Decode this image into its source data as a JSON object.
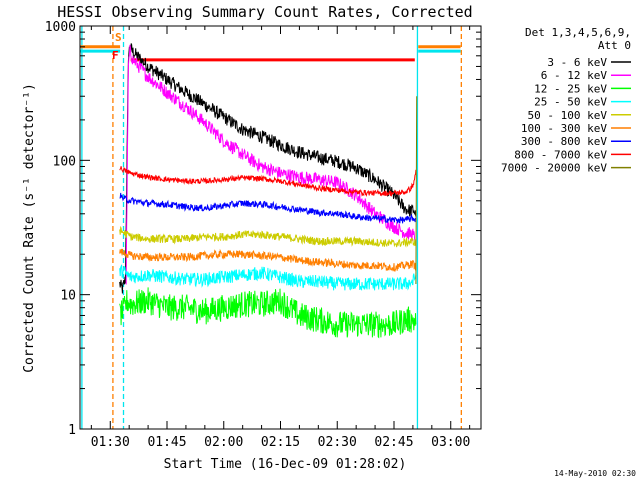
{
  "chart_data": {
    "type": "line",
    "title": "HESSI Observing Summary Count Rates, Corrected",
    "xlabel": "Start Time (16-Dec-09 01:28:02)",
    "ylabel": "Corrected Count Rate (s⁻¹ detector⁻¹)",
    "x_ticks": [
      "01:30",
      "01:45",
      "02:00",
      "02:15",
      "02:30",
      "02:45",
      "03:00"
    ],
    "x_tick_minutes": [
      90,
      105,
      120,
      135,
      150,
      165,
      180
    ],
    "xlim_minutes": [
      82,
      188
    ],
    "y_scale": "log",
    "ylim": [
      1,
      1000
    ],
    "y_ticks": [
      "1",
      "10",
      "100",
      "1000"
    ],
    "y_tick_values": [
      1,
      10,
      100,
      1000
    ],
    "footer": "14-May-2010 02:30",
    "legend": {
      "placement": "right",
      "header": [
        "Det 1,3,4,5,6,9,",
        "Att 0"
      ]
    },
    "markers": [
      {
        "label": "S",
        "color": "#ff7f00"
      },
      {
        "label": "F",
        "color": "#ff0000"
      }
    ],
    "vertical_lines": [
      {
        "x_minutes": 82.5,
        "color": "#00e5ee",
        "style": "solid"
      },
      {
        "x_minutes": 90.7,
        "color": "#ff7f00",
        "style": "dashed"
      },
      {
        "x_minutes": 93.5,
        "color": "#00e5ee",
        "style": "dashed"
      },
      {
        "x_minutes": 171.2,
        "color": "#00e5ee",
        "style": "solid"
      },
      {
        "x_minutes": 182.8,
        "color": "#ff7f00",
        "style": "dashed"
      }
    ],
    "horizontal_bars": [
      {
        "x_start": 82,
        "x_end": 92.6,
        "y": 700,
        "color": "#ff7f00"
      },
      {
        "x_start": 82,
        "x_end": 92.6,
        "y": 650,
        "color": "#00e5ee"
      },
      {
        "x_start": 171.4,
        "x_end": 182.6,
        "y": 700,
        "color": "#ff7f00"
      },
      {
        "x_start": 171.4,
        "x_end": 182.6,
        "y": 650,
        "color": "#00e5ee"
      },
      {
        "x_start": 95.4,
        "x_end": 170.5,
        "y": 560,
        "color": "#ff0000"
      }
    ],
    "series": [
      {
        "name": "3 - 6 keV",
        "color": "#000000",
        "noise": 0.05,
        "x": [
          92.5,
          93.2,
          94.0,
          94.8,
          95.2,
          96,
          100,
          105,
          110,
          115,
          120,
          125,
          130,
          135,
          140,
          145,
          150,
          155,
          160,
          165,
          167.5,
          168.5,
          169.5,
          170.3,
          170.8
        ],
        "y": [
          12,
          11,
          13,
          600,
          700,
          640,
          500,
          400,
          320,
          260,
          210,
          170,
          150,
          130,
          115,
          105,
          98,
          88,
          72,
          55,
          45,
          43,
          42,
          43,
          38
        ]
      },
      {
        "name": "6 - 12 keV",
        "color": "#ff00ff",
        "noise": 0.05,
        "x": [
          94.2,
          94.8,
          95.2,
          96,
          100,
          105,
          110,
          115,
          120,
          125,
          130,
          135,
          140,
          145,
          150,
          155,
          160,
          165,
          168,
          170,
          170.8
        ],
        "y": [
          13,
          500,
          650,
          560,
          420,
          320,
          250,
          190,
          140,
          110,
          90,
          80,
          75,
          72,
          68,
          55,
          40,
          32,
          29,
          28,
          25
        ]
      },
      {
        "name": "12 - 25 keV",
        "color": "#00ff00",
        "noise": 0.1,
        "x": [
          92.5,
          93.5,
          94.5,
          95.5,
          100,
          105,
          110,
          115,
          120,
          125,
          130,
          135,
          140,
          145,
          150,
          155,
          160,
          165,
          168,
          170,
          170.8
        ],
        "y": [
          7,
          7.5,
          9,
          8.5,
          9,
          8,
          8,
          7.5,
          8,
          8.5,
          8.5,
          9,
          7,
          6.5,
          6,
          6,
          6,
          6,
          6.5,
          6.5,
          6
        ]
      },
      {
        "name": "25 - 50 keV",
        "color": "#00ffff",
        "noise": 0.05,
        "x": [
          92.5,
          93.5,
          94.5,
          95.5,
          100,
          105,
          110,
          115,
          120,
          125,
          130,
          135,
          140,
          145,
          150,
          155,
          160,
          165,
          168,
          170,
          170.8
        ],
        "y": [
          15,
          15,
          14,
          13.5,
          14,
          13.5,
          13,
          13,
          13.5,
          14,
          14.5,
          13.5,
          12.5,
          12.5,
          12,
          12,
          12,
          12,
          12,
          12.5,
          14
        ]
      },
      {
        "name": "50 - 100 keV",
        "color": "#cccc00",
        "noise": 0.03,
        "x": [
          92.5,
          93.5,
          94.5,
          95.5,
          100,
          105,
          110,
          115,
          120,
          125,
          130,
          135,
          140,
          145,
          150,
          155,
          160,
          165,
          168,
          170,
          170.8
        ],
        "y": [
          30,
          29,
          28,
          27,
          26,
          26,
          26,
          27,
          27,
          28,
          28,
          27,
          26,
          25,
          25,
          25,
          24.5,
          24,
          24.5,
          25,
          24
        ]
      },
      {
        "name": "100 - 300 keV",
        "color": "#ff7f00",
        "noise": 0.03,
        "x": [
          92.5,
          93.5,
          94.5,
          95.5,
          100,
          105,
          110,
          115,
          120,
          125,
          130,
          135,
          140,
          145,
          150,
          155,
          160,
          165,
          168,
          170,
          170.8
        ],
        "y": [
          21,
          20.5,
          20,
          19.5,
          19,
          19,
          19,
          19.5,
          20,
          20,
          19.5,
          19,
          18,
          17.5,
          17,
          16.5,
          16.5,
          16,
          16.5,
          17,
          16
        ]
      },
      {
        "name": "300 - 800 keV",
        "color": "#0000ff",
        "noise": 0.025,
        "x": [
          92.5,
          93.5,
          94.5,
          95.5,
          100,
          105,
          110,
          115,
          120,
          125,
          130,
          135,
          140,
          145,
          150,
          155,
          160,
          165,
          168,
          170,
          170.8
        ],
        "y": [
          55,
          52,
          51,
          50,
          48,
          47,
          45,
          44,
          46,
          48,
          47,
          45,
          43,
          41,
          40,
          38,
          37,
          36,
          36,
          37,
          36
        ]
      },
      {
        "name": "800 - 7000 keV",
        "color": "#ff0000",
        "noise": 0.02,
        "x": [
          92.5,
          93.5,
          94.5,
          95.5,
          100,
          105,
          110,
          115,
          120,
          125,
          130,
          135,
          140,
          145,
          150,
          155,
          160,
          165,
          168,
          169.5,
          170.3,
          170.8
        ],
        "y": [
          88,
          85,
          82,
          80,
          75,
          72,
          70,
          70,
          72,
          74,
          73,
          70,
          66,
          62,
          60,
          58,
          57,
          57,
          58,
          62,
          68,
          85
        ]
      },
      {
        "name": "7000 - 20000 keV",
        "color": "#808000",
        "noise": 0,
        "x": [
          170.8,
          171.0
        ],
        "y": [
          12,
          300
        ]
      }
    ]
  }
}
